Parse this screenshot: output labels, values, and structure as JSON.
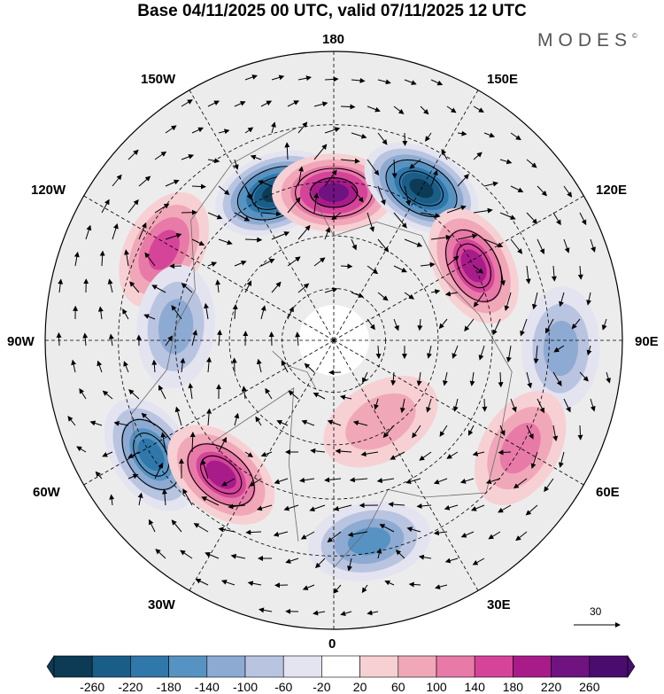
{
  "title": "Base 04/11/2025 00 UTC, valid 07/11/2025 12 UTC",
  "brand": "MODES",
  "brand_mark": "©",
  "longitude_labels": {
    "top": "180",
    "bottom": "0",
    "left": "90W",
    "right": "90E",
    "upper_left_1": "150W",
    "upper_left_2": "120W",
    "lower_left_1": "60W",
    "lower_left_2": "30W",
    "upper_right_1": "150E",
    "upper_right_2": "120E",
    "lower_right_1": "60E",
    "lower_right_2": "30E"
  },
  "reference_vector": {
    "label": "30"
  },
  "colorbar": {
    "labels": [
      "-260",
      "-220",
      "-180",
      "-140",
      "-100",
      "-60",
      "-20",
      "20",
      "60",
      "100",
      "140",
      "180",
      "220",
      "260"
    ],
    "colors": [
      "#0d3a55",
      "#1a5e88",
      "#3077aa",
      "#5793c2",
      "#8daad2",
      "#b9c4e0",
      "#e3e4f0",
      "#ffffff",
      "#f7d0d4",
      "#f0a8b8",
      "#e87aa8",
      "#d6449a",
      "#a81c8a",
      "#6e1380",
      "#4a0d6e"
    ]
  },
  "anomalies": [
    {
      "name": "low-150w",
      "lon": -158,
      "colat": 30,
      "value": -260
    },
    {
      "name": "high-180",
      "lon": 180,
      "colat": 28,
      "value": 240
    },
    {
      "name": "low-150e",
      "lon": 150,
      "colat": 33,
      "value": -260
    },
    {
      "name": "high-120e",
      "lon": 118,
      "colat": 30,
      "value": 200
    },
    {
      "name": "high-120w",
      "lon": -118,
      "colat": 36,
      "value": 140
    },
    {
      "name": "low-90e",
      "lon": 88,
      "colat": 42,
      "value": -100
    },
    {
      "name": "low-60w",
      "lon": -58,
      "colat": 40,
      "value": -180
    },
    {
      "name": "high-45w",
      "lon": -40,
      "colat": 33,
      "value": 180
    },
    {
      "name": "high-60e",
      "lon": 60,
      "colat": 40,
      "value": 100
    },
    {
      "name": "low-20e",
      "lon": 10,
      "colat": 38,
      "value": -140
    },
    {
      "name": "low-100w",
      "lon": -95,
      "colat": 30,
      "value": -100
    },
    {
      "name": "high-20e-n",
      "lon": 30,
      "colat": 18,
      "value": 80
    }
  ]
}
